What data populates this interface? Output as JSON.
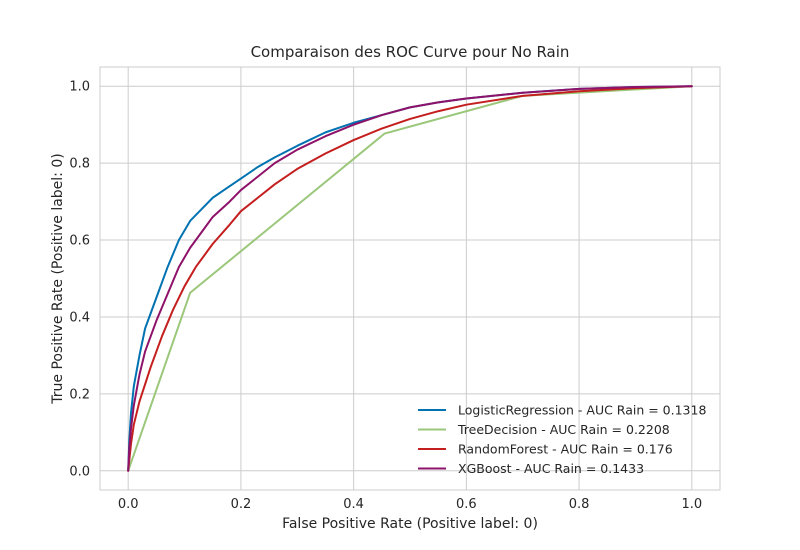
{
  "chart_data": {
    "type": "line",
    "title": "Comparaison des ROC Curve pour No Rain",
    "xlabel": "False Positive Rate (Positive label: 0)",
    "ylabel": "True Positive Rate (Positive label: 0)",
    "xlim": [
      -0.05,
      1.05
    ],
    "ylim": [
      -0.05,
      1.05
    ],
    "xticks": [
      0.0,
      0.2,
      0.4,
      0.6,
      0.8,
      1.0
    ],
    "yticks": [
      0.0,
      0.2,
      0.4,
      0.6,
      0.8,
      1.0
    ],
    "xtick_labels": [
      "0.0",
      "0.2",
      "0.4",
      "0.6",
      "0.8",
      "1.0"
    ],
    "ytick_labels": [
      "0.0",
      "0.2",
      "0.4",
      "0.6",
      "0.8",
      "1.0"
    ],
    "grid": true,
    "legend_position": "lower-right",
    "series": [
      {
        "name": "LogisticRegression - AUC Rain = 0.1318",
        "color": "#0072B2",
        "x": [
          0,
          0.002,
          0.005,
          0.01,
          0.02,
          0.03,
          0.05,
          0.07,
          0.09,
          0.11,
          0.13,
          0.15,
          0.18,
          0.2,
          0.23,
          0.26,
          0.3,
          0.35,
          0.4,
          0.45,
          0.5,
          0.55,
          0.6,
          0.7,
          0.8,
          0.9,
          1.0
        ],
        "y": [
          0,
          0.08,
          0.15,
          0.22,
          0.3,
          0.37,
          0.45,
          0.53,
          0.6,
          0.65,
          0.68,
          0.71,
          0.74,
          0.76,
          0.79,
          0.815,
          0.845,
          0.88,
          0.905,
          0.925,
          0.945,
          0.958,
          0.968,
          0.983,
          0.993,
          0.998,
          1.0
        ]
      },
      {
        "name": "TreeDecision - AUC Rain = 0.2208",
        "color": "#9BC77A",
        "x": [
          0,
          0.11,
          0.455,
          0.7,
          1.0
        ],
        "y": [
          0,
          0.463,
          0.877,
          0.975,
          1.0
        ]
      },
      {
        "name": "RandomForest - AUC Rain = 0.176",
        "color": "#C41E1E",
        "x": [
          0,
          0.005,
          0.01,
          0.02,
          0.04,
          0.06,
          0.08,
          0.1,
          0.12,
          0.15,
          0.18,
          0.2,
          0.23,
          0.26,
          0.3,
          0.35,
          0.4,
          0.45,
          0.5,
          0.55,
          0.6,
          0.7,
          0.8,
          0.9,
          1.0
        ],
        "y": [
          0,
          0.07,
          0.12,
          0.18,
          0.27,
          0.35,
          0.42,
          0.48,
          0.53,
          0.59,
          0.64,
          0.675,
          0.71,
          0.745,
          0.785,
          0.825,
          0.86,
          0.89,
          0.915,
          0.935,
          0.952,
          0.975,
          0.987,
          0.995,
          1.0
        ]
      },
      {
        "name": "XGBoost - AUC Rain = 0.1433",
        "color": "#8E1269",
        "x": [
          0,
          0.002,
          0.005,
          0.01,
          0.02,
          0.03,
          0.05,
          0.07,
          0.09,
          0.11,
          0.13,
          0.15,
          0.18,
          0.2,
          0.23,
          0.26,
          0.3,
          0.35,
          0.4,
          0.45,
          0.5,
          0.55,
          0.6,
          0.7,
          0.8,
          0.9,
          1.0
        ],
        "y": [
          0,
          0.06,
          0.11,
          0.17,
          0.25,
          0.31,
          0.39,
          0.46,
          0.53,
          0.58,
          0.62,
          0.66,
          0.7,
          0.73,
          0.765,
          0.8,
          0.835,
          0.87,
          0.9,
          0.925,
          0.945,
          0.958,
          0.968,
          0.983,
          0.993,
          0.998,
          1.0
        ]
      }
    ]
  }
}
